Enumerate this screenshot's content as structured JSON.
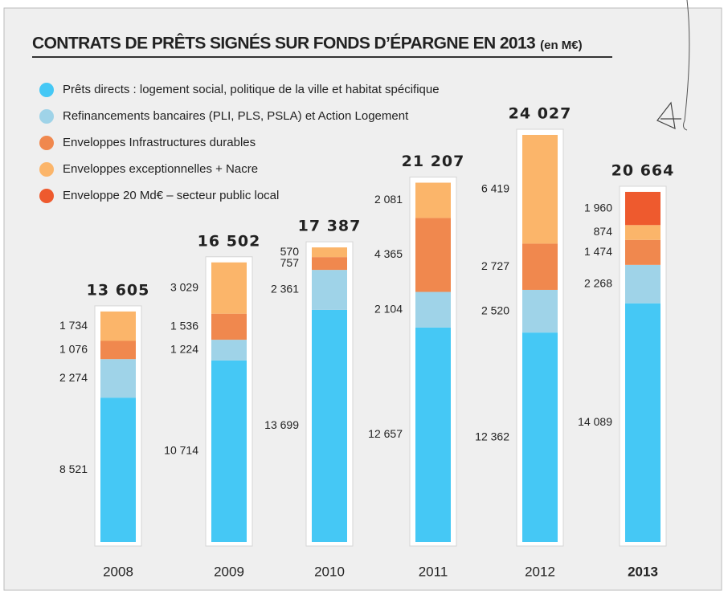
{
  "chart_data": {
    "type": "stacked-bar",
    "title": "CONTRATS DE PRÊTS SIGNÉS SUR FONDS D’ÉPARGNE EN 2013",
    "subtitle": "(en M€)",
    "categories": [
      "2008",
      "2009",
      "2010",
      "2011",
      "2012",
      "2013"
    ],
    "totals": [
      13605,
      16502,
      17387,
      21207,
      24027,
      20664
    ],
    "total_labels": [
      "13 605",
      "16 502",
      "17 387",
      "21 207",
      "24 027",
      "20 664"
    ],
    "series": [
      {
        "name": "Prêts directs : logement social, politique de la ville et habitat spécifique",
        "color": "#45c8f5",
        "values": [
          8521,
          10714,
          13699,
          12657,
          12362,
          14089
        ],
        "value_labels": [
          "8 521",
          "10 714",
          "13 699",
          "12 657",
          "12 362",
          "14 089"
        ]
      },
      {
        "name": "Refinancements bancaires (PLI, PLS, PSLA) et Action Logement",
        "color": "#9fd3e8",
        "values": [
          2274,
          1224,
          2361,
          2104,
          2520,
          2268
        ],
        "value_labels": [
          "2 274",
          "1 224",
          "2 361",
          "2 104",
          "2 520",
          "2 268"
        ]
      },
      {
        "name": "Enveloppes Infrastructures durables",
        "color": "#f0884e",
        "values": [
          1076,
          1536,
          757,
          4365,
          2727,
          1474
        ],
        "value_labels": [
          "1 076",
          "1 536",
          "757",
          "4 365",
          "2 727",
          "1 474"
        ]
      },
      {
        "name": "Enveloppes exceptionnelles + Nacre",
        "color": "#fbb56a",
        "values": [
          1734,
          3029,
          570,
          2081,
          6419,
          874
        ],
        "value_labels": [
          "1 734",
          "3 029",
          "570",
          "2 081",
          "6 419",
          "874"
        ]
      },
      {
        "name": "Enveloppe 20 Md€ – secteur public local",
        "color": "#ee5a2e",
        "values": [
          null,
          null,
          null,
          null,
          null,
          1960
        ],
        "value_labels": [
          null,
          null,
          null,
          null,
          null,
          "1 960"
        ]
      }
    ]
  }
}
